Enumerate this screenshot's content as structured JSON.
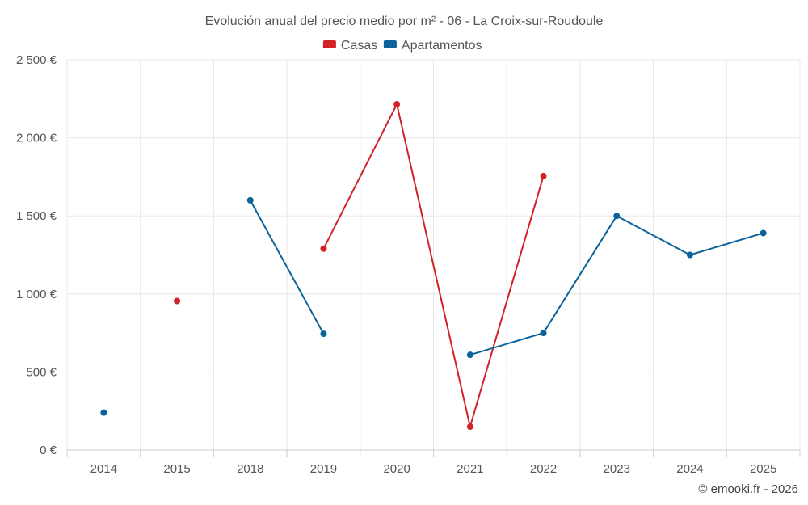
{
  "chart_data": {
    "type": "line",
    "title": "Evolución anual del precio medio por m² - 06 - La Croix-sur-Roudoule",
    "categories": [
      "2014",
      "2015",
      "2018",
      "2019",
      "2020",
      "2021",
      "2022",
      "2023",
      "2024",
      "2025"
    ],
    "series": [
      {
        "name": "Casas",
        "color": "#d32128",
        "values": [
          null,
          955,
          null,
          1290,
          2215,
          150,
          1755,
          null,
          null,
          null
        ]
      },
      {
        "name": "Apartamentos",
        "color": "#0b6399",
        "values": [
          240,
          null,
          1600,
          745,
          null,
          610,
          750,
          1500,
          1250,
          1390
        ]
      }
    ],
    "ylim": [
      0,
      2500
    ],
    "yticks": [
      0,
      500,
      1000,
      1500,
      2000,
      2500
    ],
    "ytick_labels": [
      "0 €",
      "500 €",
      "1 000 €",
      "1 500 €",
      "2 000 €",
      "2 500 €"
    ],
    "xlabel": "",
    "ylabel": "",
    "grid": true,
    "legend": "top-center"
  },
  "credit": "© emooki.fr - 2026"
}
